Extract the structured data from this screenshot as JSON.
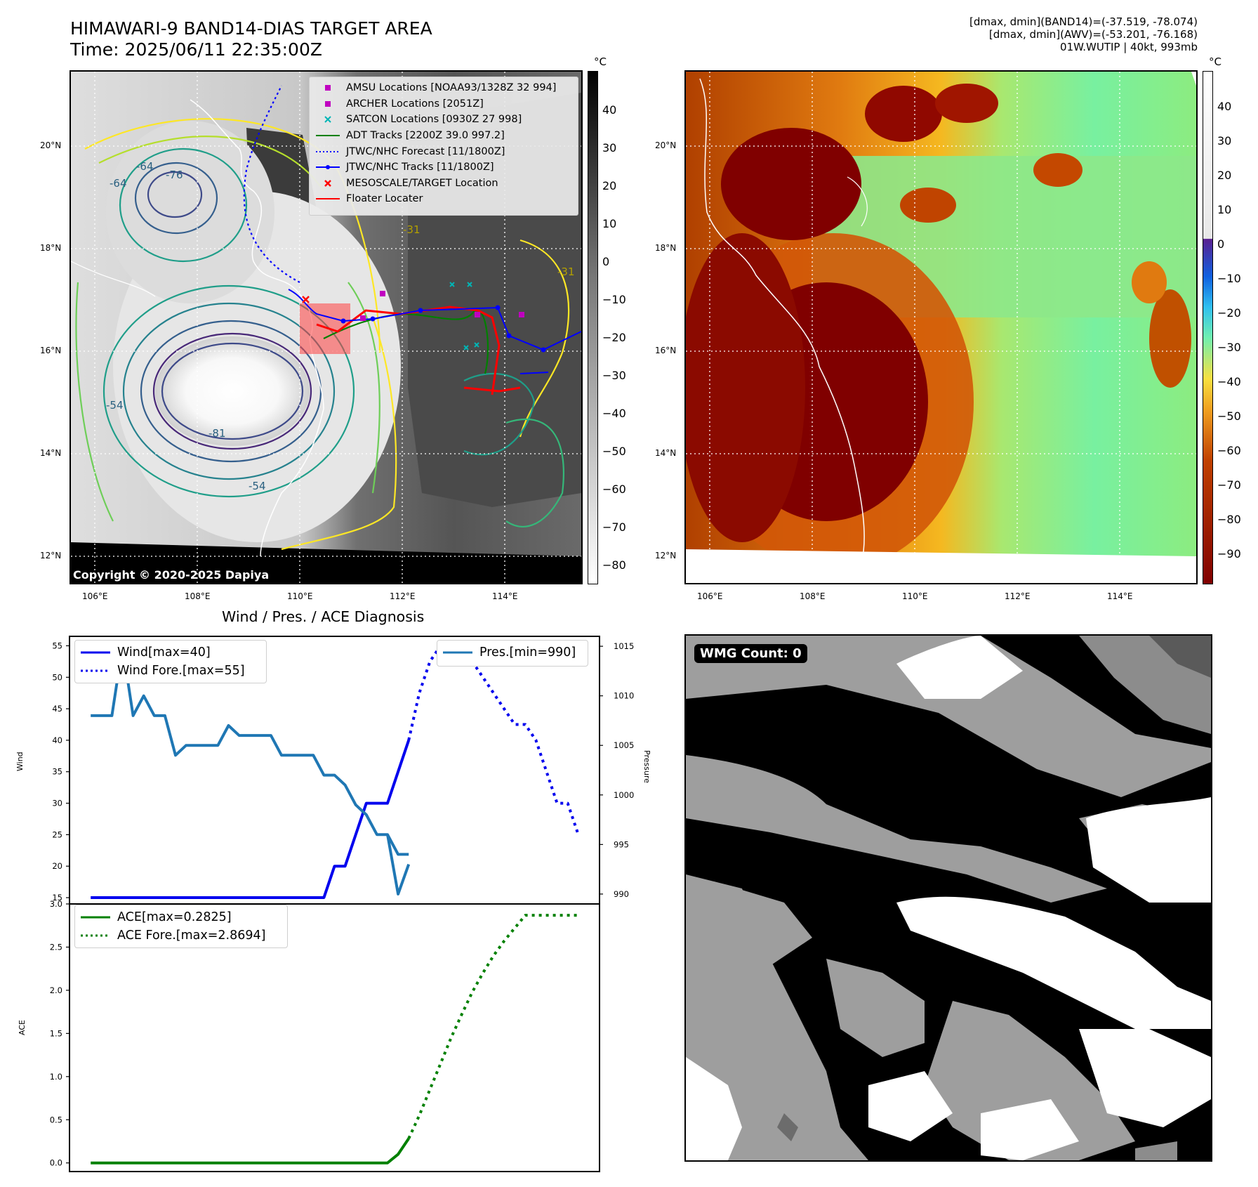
{
  "header": {
    "title_line1": "HIMAWARI-9 BAND14-DIAS TARGET AREA",
    "title_line2": "Time: 2025/06/11 22:35:00Z",
    "info_line1": "[dmax, dmin](BAND14)=(-37.519, -78.074)",
    "info_line2": "[dmax, dmin](AWV)=(-53.201, -76.168)",
    "info_line3": "01W.WUTIP | 40kt, 993mb"
  },
  "map_ir": {
    "lon_ticks": [
      "106°E",
      "108°E",
      "110°E",
      "112°E",
      "114°E"
    ],
    "lat_ticks": [
      "20°N",
      "18°N",
      "16°N",
      "14°N",
      "12°N"
    ],
    "copyright": "Copyright © 2020-2025 Dapiya",
    "contour_labels": [
      "-64",
      "-76",
      "-64",
      "-81",
      "-54",
      "-54",
      "-31",
      "-31"
    ],
    "colorbar_unit": "°C",
    "colorbar_ticks": [
      "40",
      "30",
      "20",
      "10",
      "0",
      "−10",
      "−20",
      "−30",
      "−40",
      "−50",
      "−60",
      "−70",
      "−80"
    ],
    "legend": [
      {
        "label": "AMSU Locations [NOAA93/1328Z 32 994]",
        "symbol": "square",
        "color": "#c000c0"
      },
      {
        "label": "ARCHER Locations [2051Z]",
        "symbol": "square",
        "color": "#c000c0"
      },
      {
        "label": "SATCON Locations [0930Z 27 998]",
        "symbol": "x",
        "color": "#00b5b5"
      },
      {
        "label": "ADT Tracks [2200Z 39.0 997.2]",
        "symbol": "line",
        "color": "#008000"
      },
      {
        "label": "JTWC/NHC Forecast [11/1800Z]",
        "symbol": "dotted",
        "color": "#0000ff"
      },
      {
        "label": "JTWC/NHC Tracks [11/1800Z]",
        "symbol": "line-dot",
        "color": "#0000ff"
      },
      {
        "label": "MESOSCALE/TARGET Location",
        "symbol": "x",
        "color": "#ff0000"
      },
      {
        "label": "Floater Locater",
        "symbol": "line",
        "color": "#ff0000"
      }
    ]
  },
  "map_awv": {
    "lon_ticks": [
      "106°E",
      "108°E",
      "110°E",
      "112°E",
      "114°E"
    ],
    "lat_ticks": [
      "20°N",
      "18°N",
      "16°N",
      "14°N",
      "12°N"
    ],
    "colorbar_unit": "°C",
    "colorbar_ticks": [
      "40",
      "30",
      "20",
      "10",
      "0",
      "−10",
      "−20",
      "−30",
      "−40",
      "−50",
      "−60",
      "−70",
      "−80",
      "−90"
    ]
  },
  "wmg": {
    "badge": "WMG Count: 0"
  },
  "chart_data": [
    {
      "type": "line",
      "title": "Wind / Pres. / ACE Diagnosis",
      "ylabel": "Wind",
      "ylabel_right": "Pressure",
      "ylim": [
        14,
        56.5
      ],
      "ylim_right": [
        989,
        1016
      ],
      "yticks": [
        15,
        20,
        25,
        30,
        35,
        40,
        45,
        50,
        55
      ],
      "yticks_right": [
        990,
        995,
        1000,
        1005,
        1010,
        1015
      ],
      "xlim": [
        -2,
        48
      ],
      "legend_left": [
        "Wind[max=40]",
        "Wind Fore.[max=55]"
      ],
      "legend_right": [
        "Pres.[min=990]"
      ],
      "series": [
        {
          "name": "Wind[max=40]",
          "axis": "left",
          "style": "solid",
          "color": "#0000ee",
          "x": [
            0,
            1,
            2,
            3,
            4,
            5,
            6,
            7,
            8,
            9,
            10,
            11,
            12,
            13,
            14,
            15,
            16,
            17,
            18,
            19,
            20,
            21,
            22,
            23,
            24,
            25,
            26,
            27,
            28,
            29,
            30
          ],
          "values": [
            15,
            15,
            15,
            15,
            15,
            15,
            15,
            15,
            15,
            15,
            15,
            15,
            15,
            15,
            15,
            15,
            15,
            15,
            15,
            15,
            15,
            15,
            15,
            20,
            20,
            25,
            30,
            30,
            30,
            35,
            40
          ]
        },
        {
          "name": "Wind Fore.[max=55]",
          "axis": "left",
          "style": "dotted",
          "color": "#0000ee",
          "x": [
            30,
            31,
            32,
            33,
            34,
            35,
            36,
            37,
            38,
            39,
            40,
            41,
            42,
            43,
            44,
            45,
            46
          ],
          "values": [
            40,
            47.5,
            52.5,
            55,
            55,
            55,
            52.5,
            50,
            47.5,
            45,
            42.5,
            42.5,
            40,
            35,
            30,
            30,
            25
          ]
        },
        {
          "name": "Pres.[min=990]",
          "axis": "right",
          "style": "solid",
          "color": "#1f77b4",
          "x": [
            0,
            1,
            2,
            3,
            4,
            5,
            6,
            7,
            8,
            9,
            10,
            11,
            12,
            13,
            14,
            15,
            16,
            17,
            18,
            19,
            20,
            21,
            22,
            23,
            24,
            25,
            26,
            27,
            28,
            29,
            30
          ],
          "values": [
            1008,
            1008,
            1008,
            1015,
            1008,
            1010,
            1008,
            1008,
            1004,
            1005,
            1005,
            1005,
            1005,
            1007,
            1006,
            1006,
            1006,
            1006,
            1004,
            1004,
            1004,
            1004,
            1002,
            1002,
            1001,
            999,
            998,
            996,
            996,
            994,
            994
          ]
        },
        {
          "name": "Pres. tail",
          "axis": "right",
          "style": "solid",
          "color": "#1f77b4",
          "x": [
            28,
            29,
            30
          ],
          "values": [
            996,
            990,
            993
          ],
          "hidden_name": true
        }
      ]
    },
    {
      "type": "line",
      "ylabel": "ACE",
      "ylim": [
        -0.1,
        3.0
      ],
      "yticks": [
        0.0,
        0.5,
        1.0,
        1.5,
        2.0,
        2.5,
        3.0
      ],
      "xlim": [
        -2,
        48
      ],
      "legend": [
        "ACE[max=0.2825]",
        "ACE Fore.[max=2.8694]"
      ],
      "series": [
        {
          "name": "ACE[max=0.2825]",
          "style": "solid",
          "color": "#008000",
          "x": [
            0,
            28,
            29,
            30
          ],
          "values": [
            0,
            0,
            0.1,
            0.2825
          ]
        },
        {
          "name": "ACE Fore.[max=2.8694]",
          "style": "dotted",
          "color": "#008000",
          "x": [
            30,
            31,
            32,
            33,
            34,
            35,
            36,
            37,
            38,
            39,
            40,
            41,
            42,
            43,
            44,
            45,
            46
          ],
          "values": [
            0.2825,
            0.55,
            0.85,
            1.15,
            1.45,
            1.72,
            1.98,
            2.2,
            2.4,
            2.57,
            2.72,
            2.8694,
            2.8694,
            2.8694,
            2.8694,
            2.8694,
            2.8694
          ]
        }
      ]
    }
  ]
}
